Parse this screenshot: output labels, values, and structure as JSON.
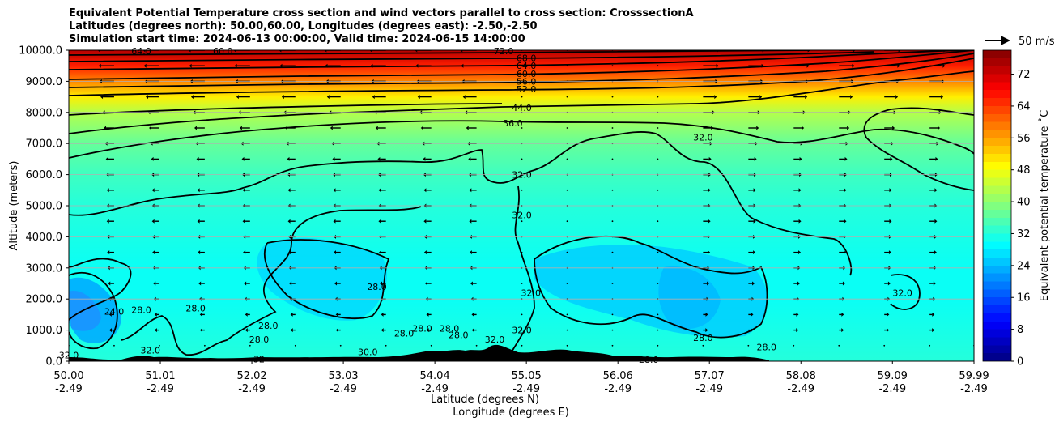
{
  "chart_data": {
    "type": "heatmap",
    "title_lines": [
      "Equivalent Potential Temperature cross section and wind vectors parallel to cross section: CrosssectionA",
      "Latitudes (degrees north): 50.00,60.00, Longitudes (degrees east): -2.50,-2.50",
      "Simulation start time: 2024-06-13 00:00:00, Valid time: 2024-06-15 14:00:00"
    ],
    "ylabel": "Altitude (meters)",
    "xlabel_lines": [
      "Latitude (degrees N)",
      "Longitude (degrees E)"
    ],
    "ylim": [
      0,
      10000
    ],
    "y_ticks": [
      "0.0",
      "1000.0",
      "2000.0",
      "3000.0",
      "4000.0",
      "5000.0",
      "6000.0",
      "7000.0",
      "8000.0",
      "9000.0",
      "10000.0"
    ],
    "x_ticks": [
      {
        "lat": "50.00",
        "lon": "-2.49"
      },
      {
        "lat": "51.01",
        "lon": "-2.49"
      },
      {
        "lat": "52.02",
        "lon": "-2.49"
      },
      {
        "lat": "53.03",
        "lon": "-2.49"
      },
      {
        "lat": "54.04",
        "lon": "-2.49"
      },
      {
        "lat": "55.05",
        "lon": "-2.49"
      },
      {
        "lat": "56.06",
        "lon": "-2.49"
      },
      {
        "lat": "57.07",
        "lon": "-2.49"
      },
      {
        "lat": "58.08",
        "lon": "-2.49"
      },
      {
        "lat": "59.09",
        "lon": "-2.49"
      },
      {
        "lat": "59.99",
        "lon": "-2.49"
      }
    ],
    "colorbar": {
      "label": "Equivalent potential temperature ˚C",
      "range": [
        0,
        78
      ],
      "ticks": [
        "0",
        "8",
        "16",
        "24",
        "32",
        "40",
        "48",
        "56",
        "64",
        "72"
      ]
    },
    "quiver_key": "50 m/s",
    "grid": "horizontal",
    "theta_e_profile": {
      "altitude_m": [
        0,
        1000,
        2000,
        3000,
        4000,
        5000,
        6000,
        7000,
        8000,
        8500,
        9000,
        9500,
        10000
      ],
      "value_c": [
        32,
        31,
        30,
        30,
        31,
        32,
        34,
        37,
        43,
        50,
        58,
        66,
        74
      ]
    },
    "contour_labels": [
      {
        "text": "72.0",
        "lat": 54.8,
        "alt": 9980
      },
      {
        "text": "68.0",
        "lat": 55.05,
        "alt": 9750
      },
      {
        "text": "64.0",
        "lat": 55.05,
        "alt": 9500
      },
      {
        "text": "60.0",
        "lat": 55.05,
        "alt": 9250
      },
      {
        "text": "56.0",
        "lat": 55.05,
        "alt": 9000
      },
      {
        "text": "52.0",
        "lat": 55.05,
        "alt": 8750
      },
      {
        "text": "44.0",
        "lat": 55.0,
        "alt": 8150
      },
      {
        "text": "36.0",
        "lat": 54.9,
        "alt": 7650
      },
      {
        "text": "32.0",
        "lat": 55.0,
        "alt": 6000
      },
      {
        "text": "32.0",
        "lat": 55.0,
        "alt": 4700
      },
      {
        "text": "32.0",
        "lat": 57.0,
        "alt": 7200
      },
      {
        "text": "32.0",
        "lat": 55.1,
        "alt": 2200
      },
      {
        "text": "32.0",
        "lat": 55.0,
        "alt": 1000
      },
      {
        "text": "32.0",
        "lat": 54.7,
        "alt": 700
      },
      {
        "text": "32.0",
        "lat": 59.2,
        "alt": 2200
      },
      {
        "text": "28.0",
        "lat": 53.4,
        "alt": 2400
      },
      {
        "text": "28.0",
        "lat": 50.8,
        "alt": 1650
      },
      {
        "text": "28.0",
        "lat": 51.4,
        "alt": 1700
      },
      {
        "text": "28.0",
        "lat": 52.2,
        "alt": 1150
      },
      {
        "text": "28.0",
        "lat": 52.1,
        "alt": 700
      },
      {
        "text": "28.0",
        "lat": 53.7,
        "alt": 900
      },
      {
        "text": "28.0",
        "lat": 53.9,
        "alt": 1050
      },
      {
        "text": "28.0",
        "lat": 54.2,
        "alt": 1050
      },
      {
        "text": "28.0",
        "lat": 54.3,
        "alt": 850
      },
      {
        "text": "28.0",
        "lat": 56.4,
        "alt": 50
      },
      {
        "text": "28.0",
        "lat": 57.0,
        "alt": 750
      },
      {
        "text": "28.0",
        "lat": 57.7,
        "alt": 450
      },
      {
        "text": "24.0",
        "lat": 50.5,
        "alt": 1600
      },
      {
        "text": "30.0",
        "lat": 53.3,
        "alt": 300
      },
      {
        "text": "32.0",
        "lat": 50.0,
        "alt": 200
      },
      {
        "text": "32.0",
        "lat": 50.9,
        "alt": 350
      },
      {
        "text": "32",
        "lat": 52.1,
        "alt": 60
      },
      {
        "text": "64.0",
        "lat": 50.8,
        "alt": 9980
      },
      {
        "text": "60.0",
        "lat": 51.7,
        "alt": 9980
      }
    ],
    "wind_vectors": {
      "lats": [
        50.0,
        50.5,
        51.0,
        51.5,
        52.0,
        52.5,
        53.0,
        53.5,
        54.0,
        54.5,
        55.0,
        55.5,
        56.0,
        56.5,
        57.0,
        57.5,
        58.0,
        58.5,
        59.0,
        59.5,
        59.99
      ],
      "levels_m": [
        500,
        1000,
        1500,
        2000,
        2500,
        3000,
        3500,
        4000,
        4500,
        5000,
        5500,
        6000,
        6500,
        7000,
        7500,
        8000,
        8500,
        9000,
        9500,
        10000
      ],
      "speed_m_s_by_level": [
        0,
        4,
        6,
        8,
        9,
        10,
        11,
        11,
        12,
        12,
        12,
        13,
        14,
        16,
        19,
        22,
        24,
        26,
        28,
        30
      ],
      "direction_by_lat": [
        -1,
        -1,
        -1,
        -1,
        -1,
        -1,
        -1,
        -1,
        -1,
        -1,
        0,
        0,
        0,
        0,
        1,
        1,
        1,
        1,
        1,
        1,
        1
      ]
    }
  }
}
